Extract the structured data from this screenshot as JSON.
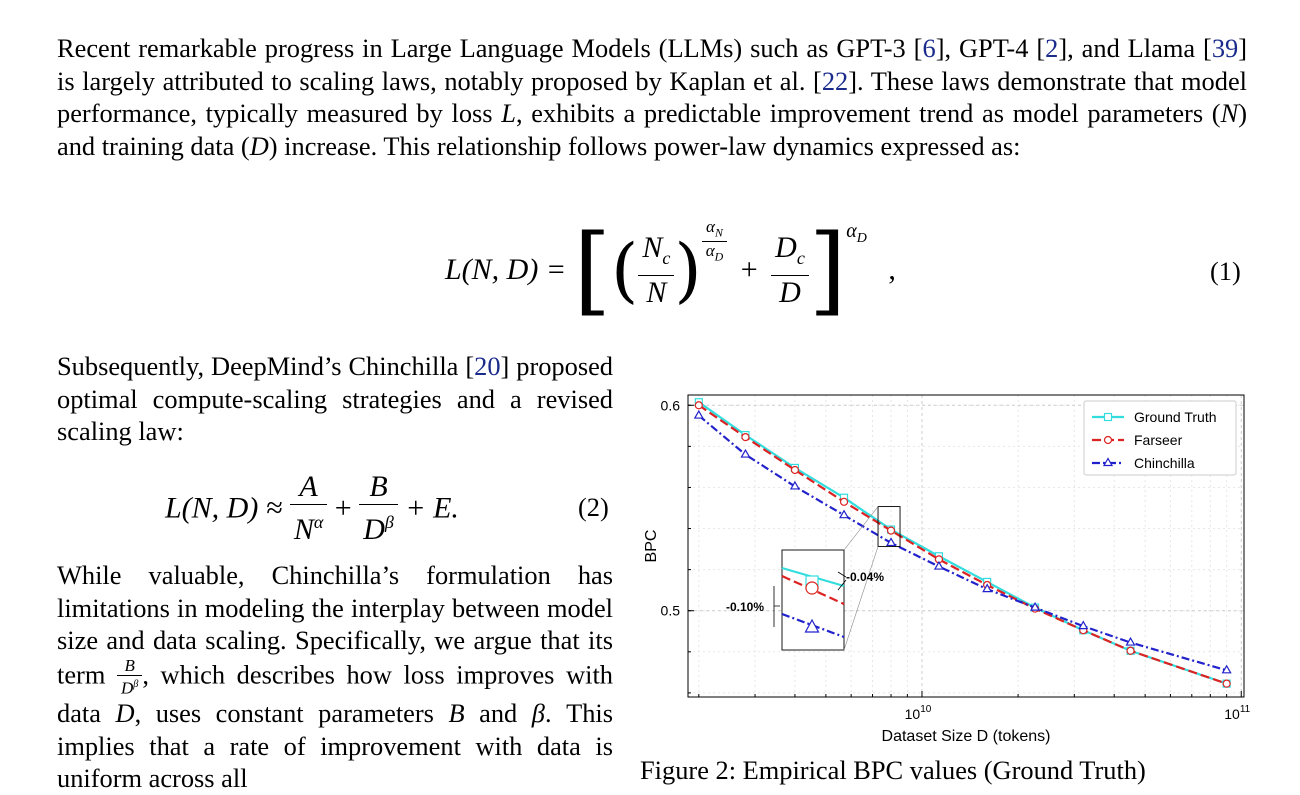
{
  "intro": {
    "t1": "Recent remarkable progress in Large Language Models (LLMs) such as GPT-3 [",
    "c1": "6",
    "t2": "], GPT-4 [",
    "c2": "2",
    "t3": "], and Llama [",
    "c3": "39",
    "t4": "] is largely attributed to scaling laws, notably proposed by Kaplan et al. [",
    "c4": "22",
    "t5": "]. These laws demonstrate that model performance, typically measured by loss ",
    "m1": "L",
    "t6": ", exhibits a predictable improvement trend as model parameters (",
    "m2": "N",
    "t7": ") and training data (",
    "m3": "D",
    "t8": ") increase. This relationship follows power-law dynamics expressed as:"
  },
  "eq1": {
    "lhs": "L(N, D) =",
    "nc": "N",
    "nc_sub": "c",
    "n": "N",
    "exp_num": "α",
    "exp_num_sub": "N",
    "exp_den": "α",
    "exp_den_sub": "D",
    "plus": "+",
    "dc": "D",
    "dc_sub": "c",
    "d": "D",
    "outer_exp": "α",
    "outer_exp_sub": "D",
    "comma": ",",
    "number": "(1)"
  },
  "left_col": {
    "p1a": "Subsequently, DeepMind’s Chinchilla [",
    "p1c": "20",
    "p1b": "] proposed optimal compute-scaling strategies and a revised scaling law:",
    "p2a": "While valuable, Chinchilla’s formulation has limitations in modeling the interplay between model size and data scaling. Specifically, we argue that its term ",
    "p2b": ", which describes how loss improves with data ",
    "p2m": "D",
    "p2c": ", uses constant parameters ",
    "p2B": "B",
    "p2d": " and ",
    "p2beta": "β",
    "p2e": ". This implies that a rate of improvement with data is uniform across all",
    "frac_num": "B",
    "frac_den": "D",
    "frac_den_exp": "β"
  },
  "eq2": {
    "lhs": "L(N, D) ≈",
    "a": "A",
    "n": "N",
    "n_exp": "α",
    "plus": "+",
    "b": "B",
    "d": "D",
    "d_exp": "β",
    "tail": "+ E.",
    "number": "(2)"
  },
  "caption": "Figure 2: Empirical BPC values (Ground Truth)",
  "chart_data": {
    "type": "line",
    "xlabel": "Dataset Size D (tokens)",
    "ylabel": "BPC",
    "x_scale": "log",
    "xlim": [
      1850000000.0,
      102000000000.0
    ],
    "ylim": [
      0.458,
      0.605
    ],
    "x_ticks": [
      {
        "value": 10000000000.0,
        "base": "10",
        "exp": "10"
      },
      {
        "value": 100000000000.0,
        "base": "10",
        "exp": "11"
      }
    ],
    "y_ticks": [
      0.5,
      0.6
    ],
    "y_tick_labels": [
      "0.5",
      "0.6"
    ],
    "grid": true,
    "legend_position": "top-right",
    "x": [
      2000000000.0,
      2800000000.0,
      4000000000.0,
      5700000000.0,
      8000000000.0,
      11300000000.0,
      16000000000.0,
      22600000000.0,
      32000000000.0,
      45000000000.0,
      90000000000.0
    ],
    "series": [
      {
        "name": "Ground Truth",
        "color": "#33dddd",
        "marker": "square",
        "dash": "solid",
        "values": [
          0.6015,
          0.5855,
          0.5695,
          0.555,
          0.5395,
          0.5265,
          0.514,
          0.5015,
          0.4905,
          0.4805,
          0.4645
        ]
      },
      {
        "name": "Farseer",
        "color": "#dd2222",
        "marker": "circle",
        "dash": "dashed",
        "values": [
          0.6,
          0.5845,
          0.5685,
          0.553,
          0.539,
          0.525,
          0.5125,
          0.501,
          0.4905,
          0.4805,
          0.4645
        ]
      },
      {
        "name": "Chinchilla",
        "color": "#2222cc",
        "marker": "triangle",
        "dash": "dashdot",
        "values": [
          0.595,
          0.576,
          0.5605,
          0.5465,
          0.533,
          0.5215,
          0.5105,
          0.5015,
          0.4925,
          0.4845,
          0.471
        ]
      }
    ],
    "annotations": [
      "-0.04%",
      "-0.10%"
    ]
  }
}
